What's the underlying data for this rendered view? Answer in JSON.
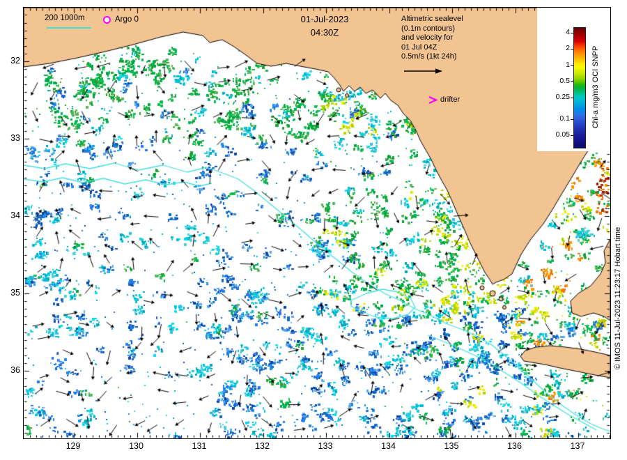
{
  "header": {
    "date": "01-Jul-2023",
    "time": "04:30Z",
    "altimetric_note": [
      "Altimetric sealevel",
      "(0.1m contours)",
      "and velocity for",
      "01 Jul 04Z",
      "0.5m/s (1kt 24h)"
    ]
  },
  "legend": {
    "bathy_labels": "200 1000m",
    "argo_label": "Argo 0",
    "drifter_label": "drifter"
  },
  "colorbar": {
    "title": "Chl-a mg/m3 OCI SNPP",
    "tick_labels": [
      "4",
      "2",
      "1",
      "0.5",
      "0.25",
      "0.1",
      "0.05"
    ],
    "gradient_stops": [
      [
        "0%",
        "#5f0000"
      ],
      [
        "5%",
        "#9b0000"
      ],
      [
        "11%",
        "#d40000"
      ],
      [
        "16%",
        "#ff4600"
      ],
      [
        "20%",
        "#ff8200"
      ],
      [
        "25%",
        "#ffb400"
      ],
      [
        "30%",
        "#ffe600"
      ],
      [
        "33%",
        "#f8fa00"
      ],
      [
        "38%",
        "#c8e800"
      ],
      [
        "43%",
        "#84d400"
      ],
      [
        "47%",
        "#2dbe00"
      ],
      [
        "50%",
        "#00b43c"
      ],
      [
        "54%",
        "#00be82"
      ],
      [
        "58%",
        "#00c8c8"
      ],
      [
        "63%",
        "#00aadc"
      ],
      [
        "68%",
        "#008ce6"
      ],
      [
        "73%",
        "#326ee6"
      ],
      [
        "78%",
        "#2850d2"
      ],
      [
        "84%",
        "#2032b4"
      ],
      [
        "90%",
        "#19199b"
      ],
      [
        "100%",
        "#0a0a6e"
      ]
    ]
  },
  "axes": {
    "x_tick_labels": [
      "129",
      "130",
      "131",
      "132",
      "133",
      "134",
      "135",
      "136",
      "137"
    ],
    "y_tick_labels": [
      "32",
      "33",
      "34",
      "35",
      "36"
    ]
  },
  "credit": "© IMOS 11-Jul-2023 11:23:17 Hobart time",
  "colors": {
    "land": "#f2c492",
    "ocean": "#ffffff",
    "coastline": "#000000",
    "bathy_contour": "#45e0dc",
    "velocity_arrow": "#000000",
    "argo_marker": "#ff00ff",
    "drifter_marker": "#ff00ff",
    "frame": "#000000"
  },
  "palette": {
    "blue": [
      "#1565c0",
      "#1e88e5",
      "#2574e8",
      "#0d47a1",
      "#5aa5ee"
    ],
    "cyan": [
      "#00bcd4",
      "#26c6da",
      "#00dcec",
      "#49cfdd",
      "#00a5bb"
    ],
    "green": [
      "#00a33f",
      "#0fbf52",
      "#2aa12a",
      "#5cb85c",
      "#00b45a"
    ],
    "yellow": [
      "#bfd400",
      "#dce300",
      "#f2ee00",
      "#a8d500"
    ],
    "orange": [
      "#ff9800",
      "#f07800"
    ],
    "red": [
      "#cf1300",
      "#8c1a00",
      "#a33500"
    ]
  }
}
